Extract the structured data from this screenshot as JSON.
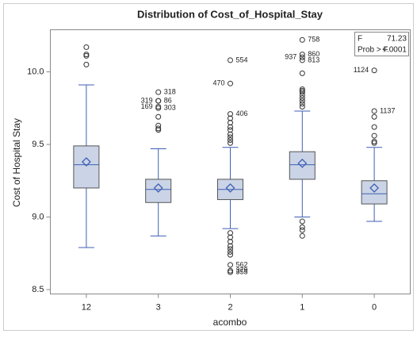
{
  "chart_data": {
    "type": "box",
    "title": "Distribution of Cost_of_Hospital_Stay",
    "x_label": "acombo",
    "y_label": "Cost of Hospital Stay",
    "categories": [
      "12",
      "3",
      "2",
      "1",
      "0"
    ],
    "box_color": "#cad4e6",
    "line_color": "#3f5fb4",
    "ylim": [
      8.47,
      10.29
    ],
    "yticks": [
      {
        "value": 8.5,
        "label": "8.5"
      },
      {
        "value": 9.0,
        "label": "9.0"
      },
      {
        "value": 9.5,
        "label": "9.5"
      },
      {
        "value": 10.0,
        "label": "10.0"
      }
    ],
    "boxes": [
      {
        "whisker_low": 8.79,
        "q1": 9.2,
        "median": 9.36,
        "q3": 9.49,
        "whisker_high": 9.91,
        "mean": 9.38,
        "outliers": [
          10.17,
          10.12,
          10.11,
          10.05
        ]
      },
      {
        "whisker_low": 8.87,
        "q1": 9.1,
        "median": 9.19,
        "q3": 9.26,
        "whisker_high": 9.47,
        "mean": 9.2,
        "outliers": [
          {
            "value": 9.86,
            "label": "318"
          },
          {
            "value": 9.8,
            "label": "86"
          },
          {
            "value": 9.8,
            "label": "319"
          },
          {
            "value": 9.75,
            "label": "303"
          },
          {
            "value": 9.76,
            "label": "169"
          },
          9.69,
          9.63,
          9.61,
          9.6
        ]
      },
      {
        "whisker_low": 8.92,
        "q1": 9.12,
        "median": 9.19,
        "q3": 9.26,
        "whisker_high": 9.48,
        "mean": 9.2,
        "outliers": [
          {
            "value": 10.08,
            "label": "554"
          },
          {
            "value": 9.92,
            "label": "470"
          },
          {
            "value": 9.71,
            "label": "406"
          },
          9.68,
          9.65,
          9.62,
          9.6,
          9.57,
          9.55,
          9.53,
          9.51,
          8.89,
          8.86,
          8.83,
          8.8,
          8.78,
          8.76,
          8.74,
          {
            "value": 8.67,
            "label": "562"
          },
          {
            "value": 8.63,
            "label": "379"
          },
          {
            "value": 8.62,
            "label": "355"
          }
        ]
      },
      {
        "whisker_low": 9.0,
        "q1": 9.26,
        "median": 9.36,
        "q3": 9.45,
        "whisker_high": 9.73,
        "mean": 9.37,
        "outliers": [
          {
            "value": 10.22,
            "label": "758"
          },
          {
            "value": 10.12,
            "label": "860"
          },
          {
            "value": 10.1,
            "label": "937"
          },
          {
            "value": 10.08,
            "label": "813"
          },
          9.99,
          9.88,
          9.87,
          9.86,
          9.84,
          9.82,
          9.8,
          9.78,
          9.76,
          8.97,
          8.93,
          8.91,
          8.87
        ]
      },
      {
        "whisker_low": 8.97,
        "q1": 9.09,
        "median": 9.16,
        "q3": 9.25,
        "whisker_high": 9.48,
        "mean": 9.2,
        "outliers": [
          {
            "value": 10.01,
            "label": "1124"
          },
          {
            "value": 9.73,
            "label": "1137"
          },
          9.69,
          9.62,
          9.56,
          9.52,
          9.51
        ]
      }
    ],
    "stats": [
      [
        "F",
        "71.23"
      ],
      [
        "Prob > F",
        "<.0001"
      ]
    ]
  }
}
